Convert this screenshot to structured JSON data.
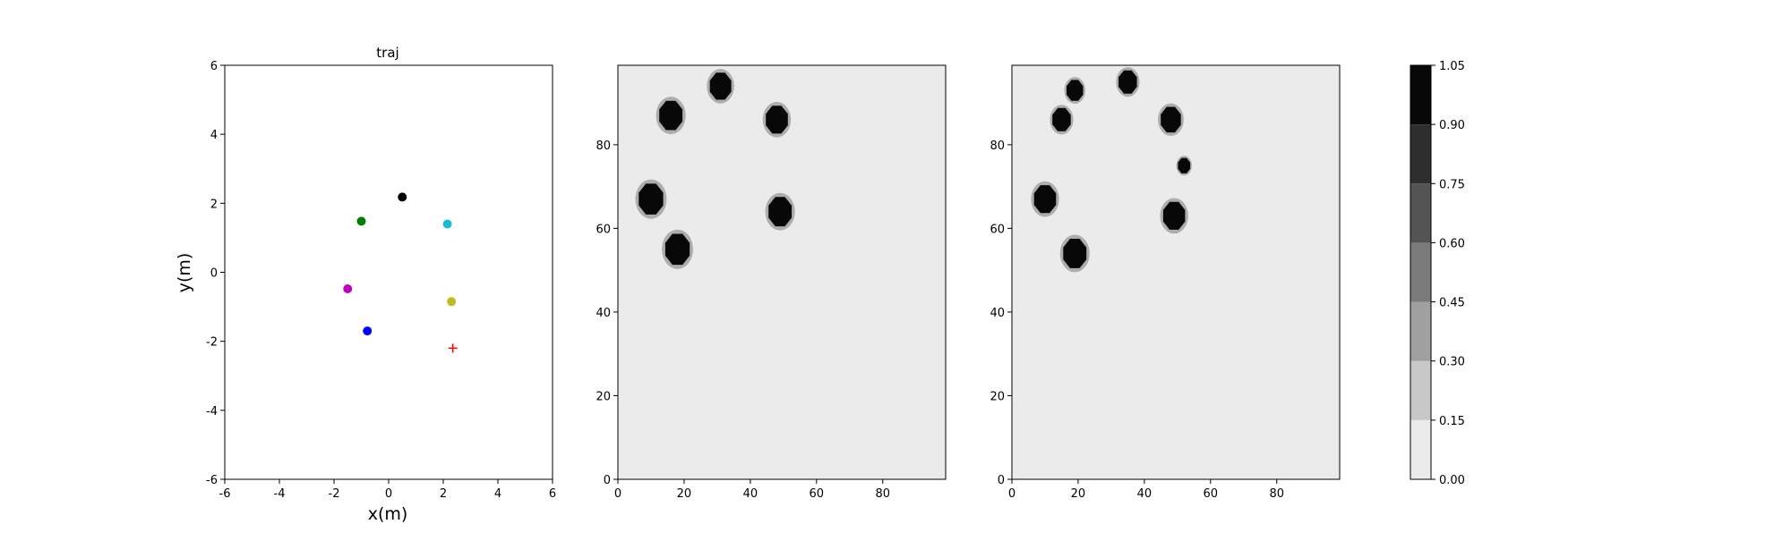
{
  "chart_data": [
    {
      "type": "scatter",
      "title": "traj",
      "xlabel": "x(m)",
      "ylabel": "y(m)",
      "xlim": [
        -6,
        6
      ],
      "ylim": [
        -6,
        6
      ],
      "xticks": [
        -6,
        -4,
        -2,
        0,
        2,
        4,
        6
      ],
      "yticks": [
        -6,
        -4,
        -2,
        0,
        2,
        4,
        6
      ],
      "grid": false,
      "points": [
        {
          "x": 0.5,
          "y": 2.18,
          "color": "#000000",
          "marker": "circle"
        },
        {
          "x": -1.0,
          "y": 1.48,
          "color": "#008000",
          "marker": "circle"
        },
        {
          "x": 2.15,
          "y": 1.4,
          "color": "#17becf",
          "marker": "circle"
        },
        {
          "x": -1.5,
          "y": -0.48,
          "color": "#bf00bf",
          "marker": "circle"
        },
        {
          "x": 2.3,
          "y": -0.85,
          "color": "#bcbd22",
          "marker": "circle"
        },
        {
          "x": -0.78,
          "y": -1.7,
          "color": "#0000ff",
          "marker": "circle"
        },
        {
          "x": 2.35,
          "y": -2.2,
          "color": "#ff0000",
          "marker": "plus"
        }
      ]
    },
    {
      "type": "heatmap",
      "title": "",
      "xlim": [
        0,
        99
      ],
      "ylim": [
        0,
        99
      ],
      "xticks": [
        0,
        20,
        40,
        60,
        80
      ],
      "yticks": [
        0,
        20,
        40,
        60,
        80
      ],
      "background_value": 0.05,
      "blobs": [
        {
          "x": 31,
          "y": 94,
          "r": 3.5,
          "value": 1.05
        },
        {
          "x": 16,
          "y": 87,
          "r": 3.8,
          "value": 1.05
        },
        {
          "x": 48,
          "y": 86,
          "r": 3.6,
          "value": 1.05
        },
        {
          "x": 10,
          "y": 67,
          "r": 4.0,
          "value": 1.05
        },
        {
          "x": 49,
          "y": 64,
          "r": 3.8,
          "value": 1.05
        },
        {
          "x": 18,
          "y": 55,
          "r": 4.0,
          "value": 1.05
        }
      ]
    },
    {
      "type": "heatmap",
      "title": "",
      "xlim": [
        0,
        99
      ],
      "ylim": [
        0,
        99
      ],
      "xticks": [
        0,
        20,
        40,
        60,
        80
      ],
      "yticks": [
        0,
        20,
        40,
        60,
        80
      ],
      "background_value": 0.05,
      "blobs": [
        {
          "x": 35,
          "y": 95,
          "r": 3.0,
          "value": 1.05
        },
        {
          "x": 19,
          "y": 93,
          "r": 2.7,
          "value": 1.05
        },
        {
          "x": 15,
          "y": 86,
          "r": 3.0,
          "value": 1.05
        },
        {
          "x": 48,
          "y": 86,
          "r": 3.3,
          "value": 1.05
        },
        {
          "x": 52,
          "y": 75,
          "r": 2.0,
          "value": 1.05
        },
        {
          "x": 10,
          "y": 67,
          "r": 3.6,
          "value": 1.05
        },
        {
          "x": 49,
          "y": 63,
          "r": 3.6,
          "value": 1.05
        },
        {
          "x": 19,
          "y": 54,
          "r": 3.8,
          "value": 1.05
        }
      ]
    },
    {
      "type": "colorbar",
      "levels": [
        0.0,
        0.15,
        0.3,
        0.45,
        0.6,
        0.75,
        0.9,
        1.05
      ],
      "tick_labels": [
        "0.00",
        "0.15",
        "0.30",
        "0.45",
        "0.60",
        "0.75",
        "0.90",
        "1.05"
      ],
      "colors": [
        "#ebebeb",
        "#c8c8c8",
        "#a0a0a0",
        "#7a7a7a",
        "#545454",
        "#2e2e2e",
        "#080808"
      ]
    }
  ]
}
